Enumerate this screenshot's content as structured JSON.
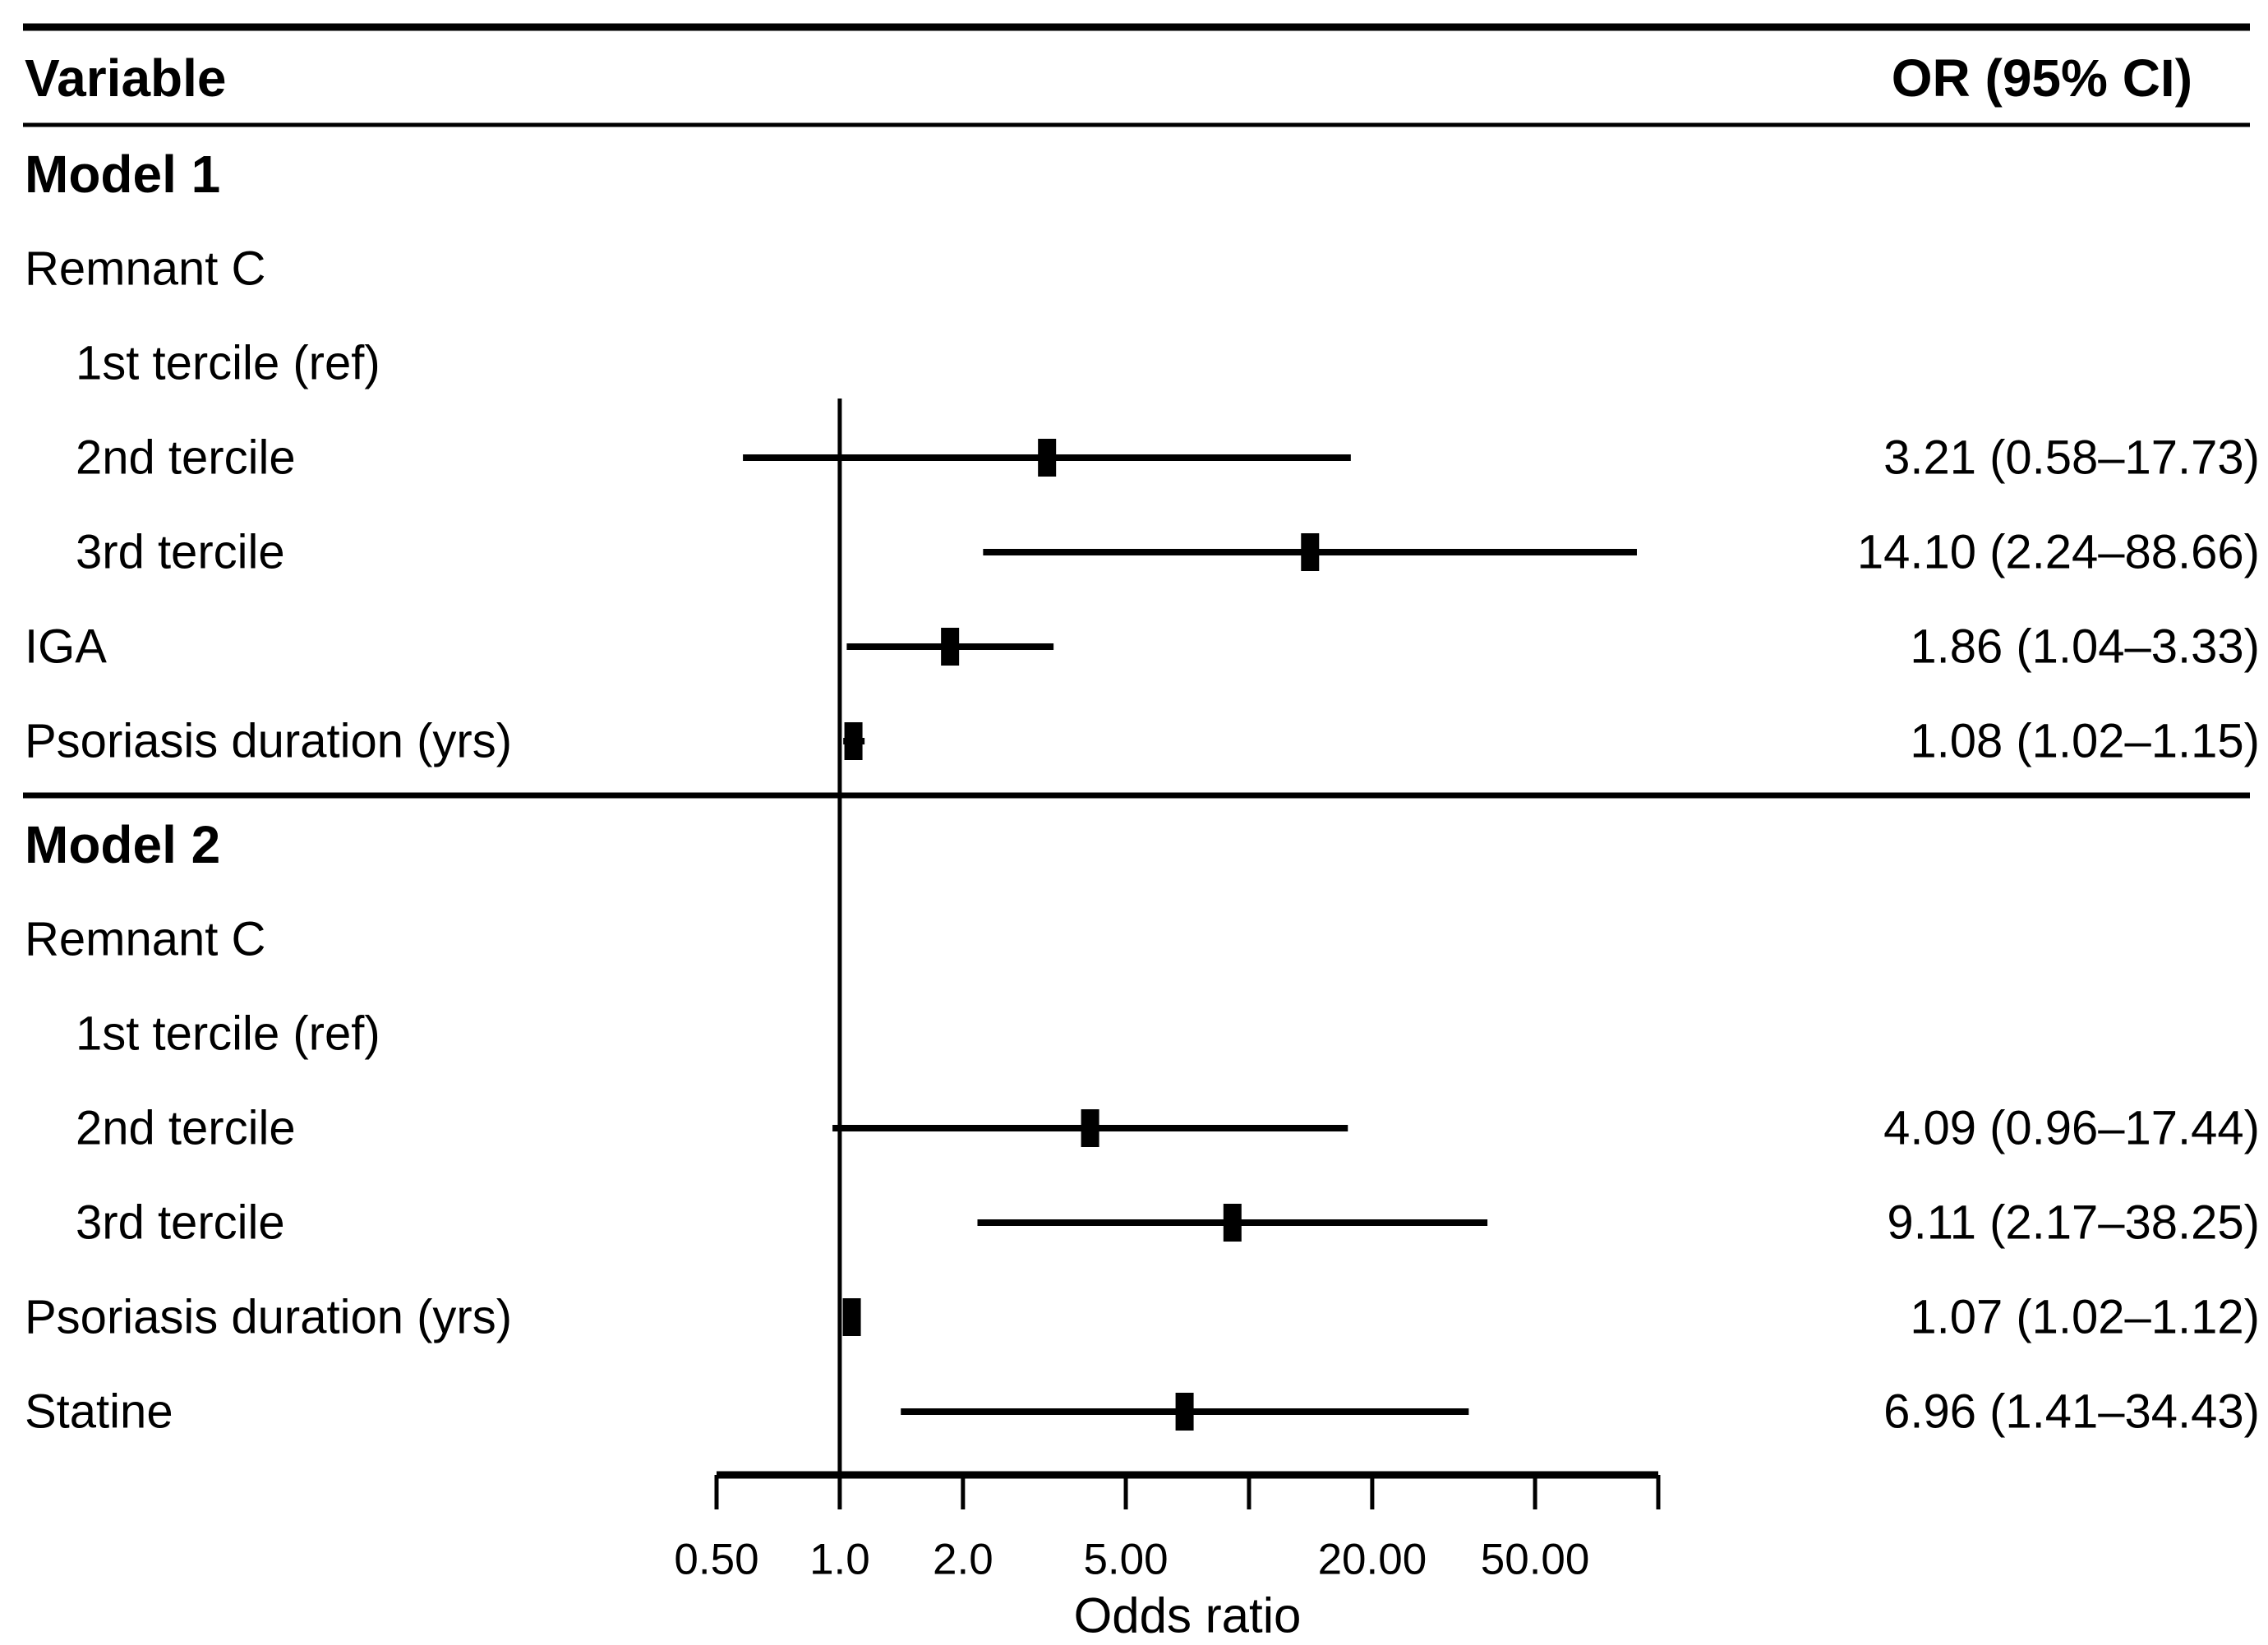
{
  "figure_header": {
    "variable": "Variable",
    "or_ci": "OR (95% CI)"
  },
  "chart_data": {
    "type": "forest",
    "title": "",
    "xlabel": "Odds ratio",
    "ylabel": "",
    "xscale": "log10",
    "xlim": [
      0.5,
      100
    ],
    "reference_line": 1.0,
    "grid": false,
    "columns": [
      "Variable",
      "OR (95% CI)"
    ],
    "x_ticks": [
      {
        "value": 0.5,
        "label": "0.50"
      },
      {
        "value": 1,
        "label": "1.0"
      },
      {
        "value": 2,
        "label": "2.0"
      },
      {
        "value": 5,
        "label": "5.00"
      },
      {
        "value": 10,
        "label": ""
      },
      {
        "value": 20,
        "label": "20.00"
      },
      {
        "value": 50,
        "label": "50.00"
      },
      {
        "value": 100,
        "label": ""
      }
    ],
    "sections": [
      {
        "title": "Model 1",
        "rows": [
          {
            "label": "Remnant C",
            "indent": 0,
            "or": null,
            "ci_low": null,
            "ci_high": null,
            "or_text": ""
          },
          {
            "label": "1st tercile (ref)",
            "indent": 1,
            "or": null,
            "ci_low": null,
            "ci_high": null,
            "or_text": ""
          },
          {
            "label": "2nd tercile",
            "indent": 1,
            "or": 3.21,
            "ci_low": 0.58,
            "ci_high": 17.73,
            "or_text": "3.21 (0.58–17.73)"
          },
          {
            "label": "3rd tercile",
            "indent": 1,
            "or": 14.1,
            "ci_low": 2.24,
            "ci_high": 88.66,
            "or_text": "14.10 (2.24–88.66)"
          },
          {
            "label": "IGA",
            "indent": 0,
            "or": 1.86,
            "ci_low": 1.04,
            "ci_high": 3.33,
            "or_text": "1.86 (1.04–3.33)"
          },
          {
            "label": "Psoriasis duration (yrs)",
            "indent": 0,
            "or": 1.08,
            "ci_low": 1.02,
            "ci_high": 1.15,
            "or_text": "1.08 (1.02–1.15)"
          }
        ]
      },
      {
        "title": "Model 2",
        "rows": [
          {
            "label": "Remnant C",
            "indent": 0,
            "or": null,
            "ci_low": null,
            "ci_high": null,
            "or_text": ""
          },
          {
            "label": "1st tercile (ref)",
            "indent": 1,
            "or": null,
            "ci_low": null,
            "ci_high": null,
            "or_text": ""
          },
          {
            "label": "2nd tercile",
            "indent": 1,
            "or": 4.09,
            "ci_low": 0.96,
            "ci_high": 17.44,
            "or_text": "4.09 (0.96–17.44)"
          },
          {
            "label": "3rd tercile",
            "indent": 1,
            "or": 9.11,
            "ci_low": 2.17,
            "ci_high": 38.25,
            "or_text": "9.11 (2.17–38.25)"
          },
          {
            "label": "Psoriasis duration (yrs)",
            "indent": 0,
            "or": 1.07,
            "ci_low": 1.02,
            "ci_high": 1.12,
            "or_text": "1.07 (1.02–1.12)"
          },
          {
            "label": "Statine",
            "indent": 0,
            "or": 6.96,
            "ci_low": 1.41,
            "ci_high": 34.43,
            "or_text": "6.96 (1.41–34.43)"
          }
        ]
      }
    ]
  },
  "colors": {
    "foreground": "#000000",
    "background": "#ffffff"
  }
}
